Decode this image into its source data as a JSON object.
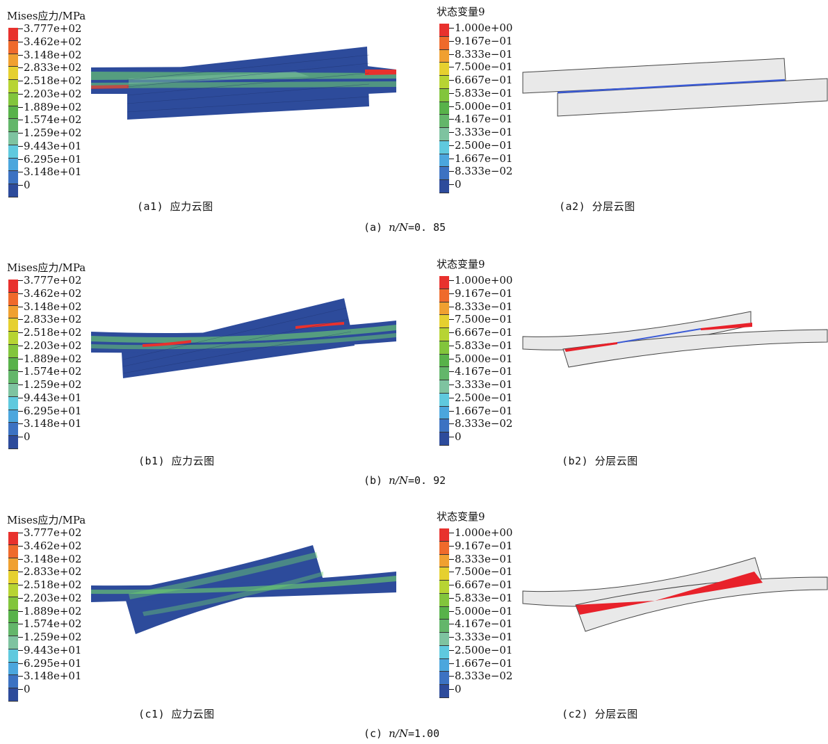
{
  "stress_legend": {
    "title": "Mises应力/MPa",
    "ticks": [
      "3.777e+02",
      "3.462e+02",
      "3.148e+02",
      "2.833e+02",
      "2.518e+02",
      "2.203e+02",
      "1.889e+02",
      "1.574e+02",
      "1.259e+02",
      "9.443e+01",
      "6.295e+01",
      "3.148e+01",
      "0"
    ],
    "colors": [
      "#e8312d",
      "#ef6a2b",
      "#f0a030",
      "#e6d02f",
      "#b7d433",
      "#82c53c",
      "#58b24a",
      "#63b66a",
      "#7ec3a0",
      "#5fc9de",
      "#4ba6dd",
      "#3c72c2",
      "#2d4b9b"
    ]
  },
  "state_legend": {
    "title": "状态变量9",
    "ticks": [
      "1.000e+00",
      "9.167e−01",
      "8.333e−01",
      "7.500e−01",
      "6.667e−01",
      "5.833e−01",
      "5.000e−01",
      "4.167e−01",
      "3.333e−01",
      "2.500e−01",
      "1.667e−01",
      "8.333e−02",
      "0"
    ],
    "colors": [
      "#e8312d",
      "#ef6a2b",
      "#f0a030",
      "#e6d02f",
      "#b7d433",
      "#82c53c",
      "#58b24a",
      "#63b66a",
      "#7ec3a0",
      "#5fc9de",
      "#4ba6dd",
      "#3c72c2",
      "#2d4b9b"
    ]
  },
  "rows": [
    {
      "stress_caption": "(a1) 应力云图",
      "state_caption": "(a2) 分层云图",
      "group_label": "(a) ",
      "group_var": "n/N",
      "group_value": "=0. 85"
    },
    {
      "stress_caption": "(b1) 应力云图",
      "state_caption": "(b2) 分层云图",
      "group_label": "(b) ",
      "group_var": "n/N",
      "group_value": "=0. 92"
    },
    {
      "stress_caption": "(c1) 应力云图",
      "state_caption": "(c2) 分层云图",
      "group_label": "(c) ",
      "group_var": "n/N",
      "group_value": "=1.00"
    }
  ],
  "colors": {
    "mesh_dark": "#2d4b9b",
    "fiber_green": "#6fd36c",
    "fiber_yellow": "#e6d02f",
    "damage_red": "#e8212a",
    "adherend_gray": "#e9e9e9",
    "interface_blue": "#3b5bd6"
  }
}
